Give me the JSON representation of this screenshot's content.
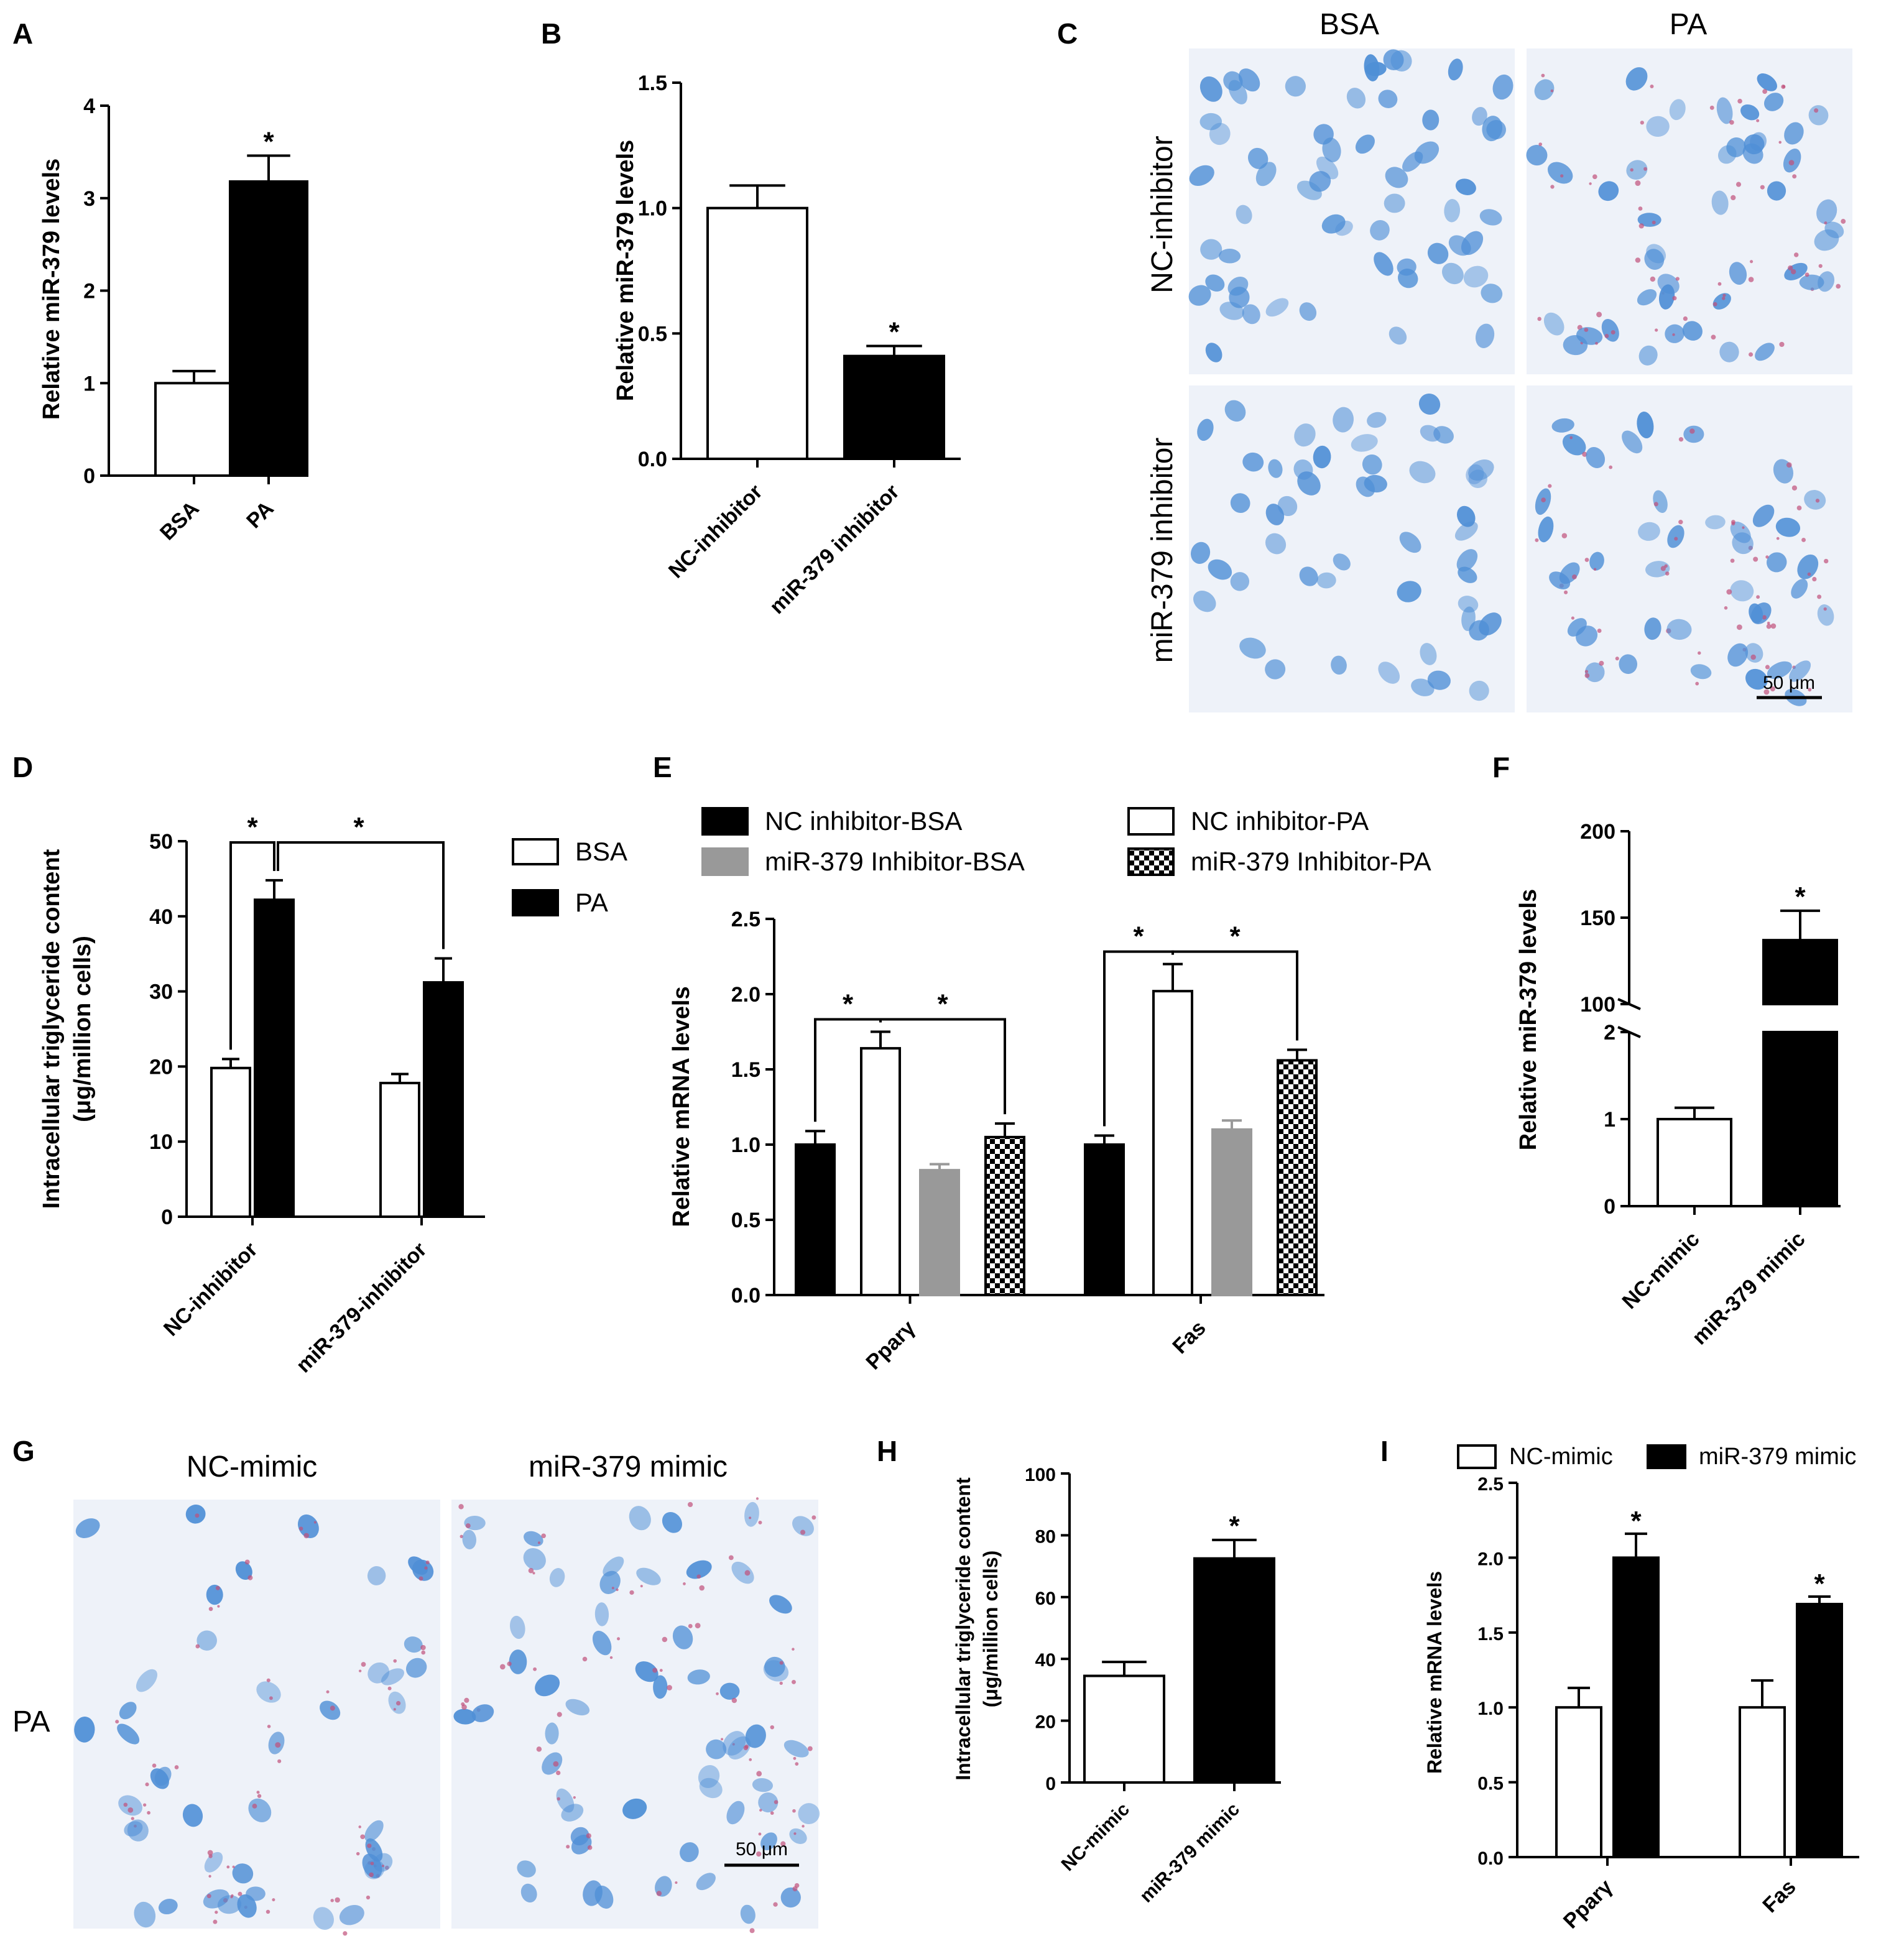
{
  "panels": {
    "A": {
      "letter": "A"
    },
    "B": {
      "letter": "B"
    },
    "C": {
      "letter": "C",
      "col_labels": [
        "BSA",
        "PA"
      ],
      "row_labels": [
        "NC-inhibitor",
        "miR-379 inhibitor"
      ],
      "scale_bar": "50 μm"
    },
    "D": {
      "letter": "D"
    },
    "E": {
      "letter": "E"
    },
    "F": {
      "letter": "F"
    },
    "G": {
      "letter": "G",
      "col_labels": [
        "NC-mimic",
        "miR-379 mimic"
      ],
      "row_label": "PA",
      "scale_bar": "50 μm"
    },
    "H": {
      "letter": "H"
    },
    "I": {
      "letter": "I"
    }
  },
  "colors": {
    "black": "#000000",
    "white": "#ffffff",
    "gray": "#999999",
    "stain_bg": "#eef2f9",
    "nucleus": "#4f8fd6",
    "lipid": "#c0507a"
  },
  "chart_data": [
    {
      "id": "A",
      "type": "bar",
      "ylabel": "Relative miR-379 levels",
      "categories": [
        "BSA",
        "PA"
      ],
      "values": [
        1.0,
        3.18
      ],
      "errors": [
        0.13,
        0.28
      ],
      "fills": [
        "white",
        "black"
      ],
      "ylim": [
        0,
        4
      ],
      "yticks": [
        "0",
        "1",
        "2",
        "3",
        "4"
      ],
      "significance": [
        "",
        "*"
      ]
    },
    {
      "id": "B",
      "type": "bar",
      "ylabel": "Relative miR-379 levels",
      "categories": [
        "NC-inhibitor",
        "miR-379 inhibitor"
      ],
      "values": [
        1.0,
        0.41
      ],
      "errors": [
        0.09,
        0.04
      ],
      "fills": [
        "white",
        "black"
      ],
      "ylim": [
        0,
        1.5
      ],
      "yticks": [
        "0.0",
        "0.5",
        "1.0",
        "1.5"
      ],
      "significance": [
        "",
        "*"
      ]
    },
    {
      "id": "D",
      "type": "bar",
      "ylabel": [
        "Intracellular triglyceride content",
        "(μg/million cells)"
      ],
      "categories": [
        "NC-inhibitor",
        "miR-379-inhibitor"
      ],
      "series": [
        {
          "name": "BSA",
          "values": [
            19.8,
            17.8
          ],
          "errors": [
            1.2,
            1.2
          ]
        },
        {
          "name": "PA",
          "values": [
            42.2,
            31.2
          ],
          "errors": [
            2.6,
            3.2
          ]
        }
      ],
      "ylim": [
        0,
        50
      ],
      "yticks": [
        "0",
        "10",
        "20",
        "30",
        "40",
        "50"
      ],
      "brackets": [
        {
          "from_bar": 0,
          "to_bar": 1,
          "label": "*"
        },
        {
          "from_bar": 1,
          "to_bar": 3,
          "label": "*"
        }
      ],
      "legend_position": "right"
    },
    {
      "id": "E",
      "type": "bar",
      "ylabel": "Relative mRNA levels",
      "categories": [
        "Pparγ",
        "Fas"
      ],
      "series": [
        {
          "name": "NC inhibitor-BSA",
          "fill": "black",
          "values": [
            1.0,
            1.0
          ],
          "errors": [
            0.09,
            0.06
          ]
        },
        {
          "name": "NC inhibitor-PA",
          "fill": "white",
          "values": [
            1.64,
            2.02
          ],
          "errors": [
            0.11,
            0.18
          ]
        },
        {
          "name": "miR-379 Inhibitor-BSA",
          "fill": "gray",
          "values": [
            0.83,
            1.1
          ],
          "errors": [
            0.04,
            0.06
          ]
        },
        {
          "name": "miR-379 Inhibitor-PA",
          "fill": "checker",
          "values": [
            1.05,
            1.56
          ],
          "errors": [
            0.09,
            0.07
          ]
        }
      ],
      "ylim": [
        0,
        2.5
      ],
      "yticks": [
        "0.0",
        "0.5",
        "1.0",
        "1.5",
        "2.0",
        "2.5"
      ],
      "brackets": [
        {
          "group": 0,
          "from": 0,
          "to": 1,
          "label": "*"
        },
        {
          "group": 0,
          "from": 1,
          "to": 3,
          "label": "*"
        },
        {
          "group": 1,
          "from": 0,
          "to": 1,
          "label": "*"
        },
        {
          "group": 1,
          "from": 1,
          "to": 3,
          "label": "*"
        }
      ],
      "legend_position": "top"
    },
    {
      "id": "F",
      "type": "bar",
      "ylabel": "Relative miR-379 levels",
      "categories": [
        "NC-mimic",
        "miR-379 mimic"
      ],
      "values": [
        1.0,
        137
      ],
      "errors": [
        0.13,
        17
      ],
      "fills": [
        "white",
        "black"
      ],
      "axis_break": {
        "lower": [
          0,
          2
        ],
        "upper": [
          100,
          200
        ]
      },
      "yticks_lower": [
        "0",
        "1",
        "2"
      ],
      "yticks_upper": [
        "100",
        "150",
        "200"
      ],
      "significance": [
        "",
        "*"
      ]
    },
    {
      "id": "H",
      "type": "bar",
      "ylabel": [
        "Intracellular triglyceride content",
        "(μg/million cells)"
      ],
      "categories": [
        "NC-mimic",
        "miR-379 mimic"
      ],
      "values": [
        34.5,
        72.5
      ],
      "errors": [
        4.5,
        6.0
      ],
      "fills": [
        "white",
        "black"
      ],
      "ylim": [
        0,
        100
      ],
      "yticks": [
        "0",
        "20",
        "40",
        "60",
        "80",
        "100"
      ],
      "significance": [
        "",
        "*"
      ]
    },
    {
      "id": "I",
      "type": "bar",
      "ylabel": "Relative mRNA levels",
      "categories": [
        "Pparγ",
        "Fas"
      ],
      "series": [
        {
          "name": "NC-mimic",
          "fill": "white",
          "values": [
            1.0,
            1.0
          ],
          "errors": [
            0.13,
            0.18
          ]
        },
        {
          "name": "miR-379 mimic",
          "fill": "black",
          "values": [
            2.0,
            1.69
          ],
          "errors": [
            0.16,
            0.05
          ]
        }
      ],
      "ylim": [
        0,
        2.5
      ],
      "yticks": [
        "0.0",
        "0.5",
        "1.0",
        "1.5",
        "2.0",
        "2.5"
      ],
      "significance": [
        [
          "",
          "*"
        ],
        [
          "",
          "*"
        ]
      ],
      "legend_position": "top"
    }
  ]
}
